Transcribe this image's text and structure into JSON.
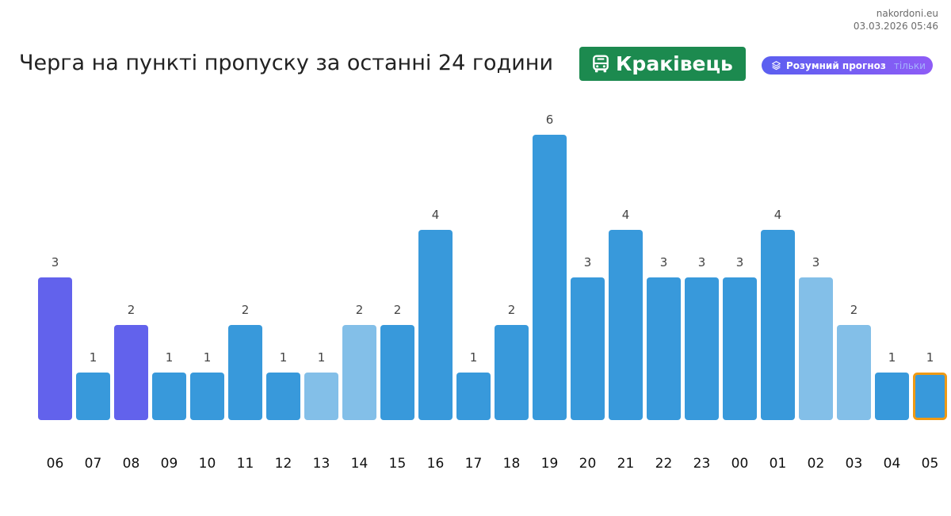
{
  "source": {
    "site": "nakordoni.eu",
    "timestamp": "03.03.2026 05:46"
  },
  "header": {
    "title": "Черга на пункті пропуску за останні 24 години",
    "station": "Краківець",
    "station_icon": "bus-icon",
    "forecast_label": "Розумний прогноз",
    "forecast_extra": "тільки",
    "forecast_icon": "layers-icon"
  },
  "colors": {
    "station_badge": "#1c8a4f",
    "forecast_from": "#5b5ff0",
    "forecast_to": "#8e5cf6",
    "current_outline": "#ef9a14"
  },
  "chart_data": {
    "type": "bar",
    "title": "",
    "xlabel": "",
    "ylabel": "",
    "ylim": [
      0,
      6
    ],
    "grid": false,
    "categories": [
      "06",
      "07",
      "08",
      "09",
      "10",
      "11",
      "12",
      "13",
      "14",
      "15",
      "16",
      "17",
      "18",
      "19",
      "20",
      "21",
      "22",
      "23",
      "00",
      "01",
      "02",
      "03",
      "04",
      "05"
    ],
    "values": [
      3,
      1,
      2,
      1,
      1,
      2,
      1,
      1,
      2,
      2,
      4,
      1,
      2,
      6,
      3,
      4,
      3,
      3,
      3,
      4,
      3,
      2,
      1,
      1
    ],
    "bar_colors": [
      "#6262ec",
      "#3899db",
      "#6262ec",
      "#3899db",
      "#3899db",
      "#3899db",
      "#3899db",
      "#83bfe8",
      "#83bfe8",
      "#3899db",
      "#3899db",
      "#3899db",
      "#3899db",
      "#3899db",
      "#3899db",
      "#3899db",
      "#3899db",
      "#3899db",
      "#3899db",
      "#3899db",
      "#83bfe8",
      "#83bfe8",
      "#3899db",
      "#3899db"
    ],
    "highlighted_category": "05"
  }
}
